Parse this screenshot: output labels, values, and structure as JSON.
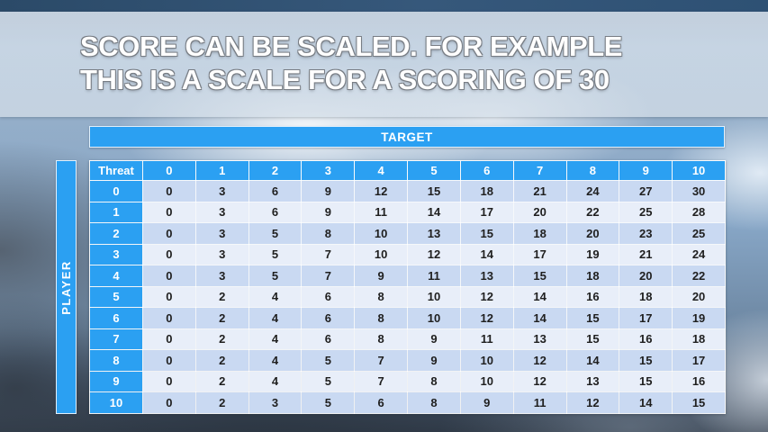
{
  "slide": {
    "title_line1": "SCORE CAN BE SCALED. FOR EXAMPLE",
    "title_line2": "THIS IS A SCALE FOR A SCORING OF 30"
  },
  "table": {
    "target_label": "TARGET",
    "player_label": "PLAYER",
    "corner_label": "Threat",
    "column_headers": [
      "0",
      "1",
      "2",
      "3",
      "4",
      "5",
      "6",
      "7",
      "8",
      "9",
      "10"
    ],
    "rows": [
      {
        "header": "0",
        "values": [
          0,
          3,
          6,
          9,
          12,
          15,
          18,
          21,
          24,
          27,
          30
        ]
      },
      {
        "header": "1",
        "values": [
          0,
          3,
          6,
          9,
          11,
          14,
          17,
          20,
          22,
          25,
          28
        ]
      },
      {
        "header": "2",
        "values": [
          0,
          3,
          5,
          8,
          10,
          13,
          15,
          18,
          20,
          23,
          25
        ]
      },
      {
        "header": "3",
        "values": [
          0,
          3,
          5,
          7,
          10,
          12,
          14,
          17,
          19,
          21,
          24
        ]
      },
      {
        "header": "4",
        "values": [
          0,
          3,
          5,
          7,
          9,
          11,
          13,
          15,
          18,
          20,
          22
        ]
      },
      {
        "header": "5",
        "values": [
          0,
          2,
          4,
          6,
          8,
          10,
          12,
          14,
          16,
          18,
          20
        ]
      },
      {
        "header": "6",
        "values": [
          0,
          2,
          4,
          6,
          8,
          10,
          12,
          14,
          15,
          17,
          19
        ]
      },
      {
        "header": "7",
        "values": [
          0,
          2,
          4,
          6,
          8,
          9,
          11,
          13,
          15,
          16,
          18
        ]
      },
      {
        "header": "8",
        "values": [
          0,
          2,
          4,
          5,
          7,
          9,
          10,
          12,
          14,
          15,
          17
        ]
      },
      {
        "header": "9",
        "values": [
          0,
          2,
          4,
          5,
          7,
          8,
          10,
          12,
          13,
          15,
          16
        ]
      },
      {
        "header": "10",
        "values": [
          0,
          2,
          3,
          5,
          6,
          8,
          9,
          11,
          12,
          14,
          15
        ]
      }
    ]
  },
  "colors": {
    "accent_blue": "#2ba0f2",
    "row_even": "#c9d9f2",
    "row_odd": "#e8eef9",
    "cell_text": "#1f1f1f"
  }
}
